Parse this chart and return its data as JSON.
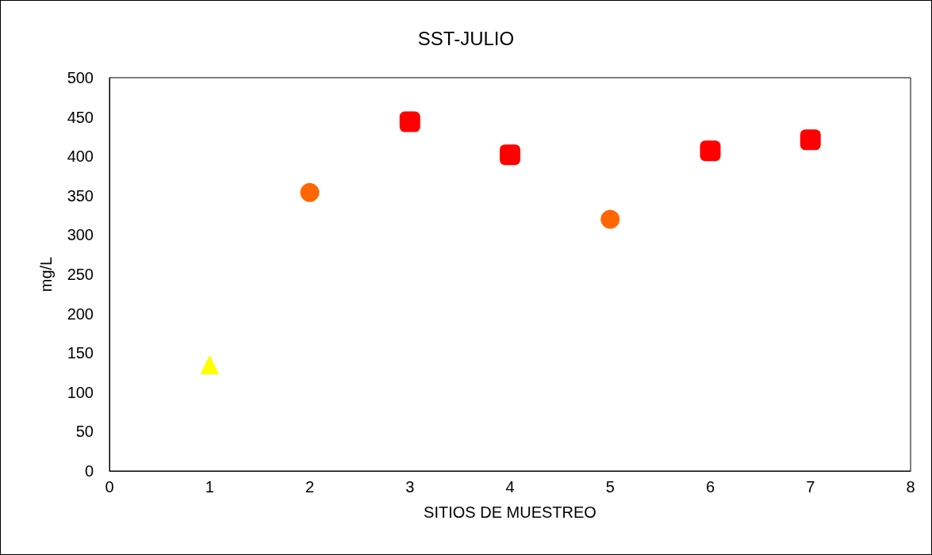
{
  "chart_data": {
    "type": "scatter",
    "title": "SST-JULIO",
    "xlabel": "SITIOS DE MUESTREO",
    "ylabel": "mg/L",
    "series": [
      {
        "color": "#ffff00",
        "marker": "triangle",
        "x": [
          1
        ],
        "values": [
          135
        ]
      },
      {
        "color": "#ff6600",
        "marker": "circle",
        "x": [
          2,
          5
        ],
        "values": [
          354,
          320
        ]
      },
      {
        "color": "#ff0000",
        "marker": "square",
        "x": [
          3,
          4,
          6,
          7
        ],
        "values": [
          444,
          402,
          407,
          421
        ]
      }
    ],
    "xlim": [
      0,
      8
    ],
    "xticks": [
      0,
      1,
      2,
      3,
      4,
      5,
      6,
      7,
      8
    ],
    "ylim": [
      0,
      500
    ],
    "yticks": [
      0,
      50,
      100,
      150,
      200,
      250,
      300,
      350,
      400,
      450,
      500
    ]
  }
}
